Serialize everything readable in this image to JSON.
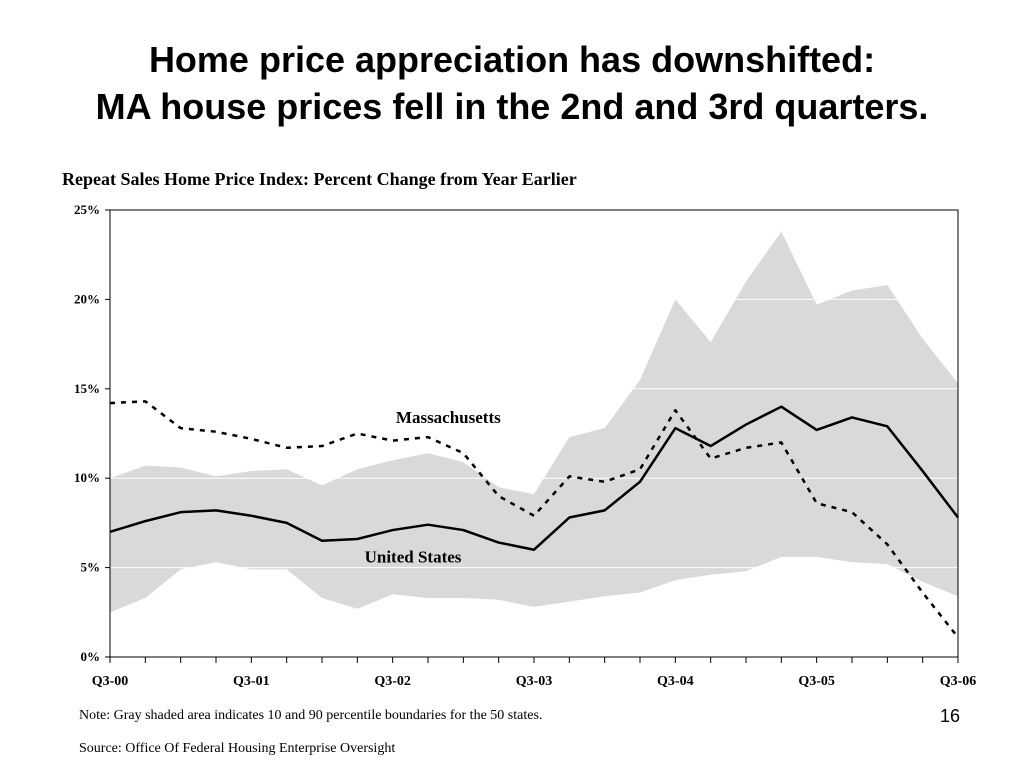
{
  "slide": {
    "title_line1": "Home price appreciation has downshifted:",
    "title_line2": "MA house prices fell in the 2nd and 3rd quarters.",
    "note": "Note: Gray shaded area indicates 10 and 90 percentile boundaries for the 50 states.",
    "source": "Source: Office Of  Federal Housing Enterprise Oversight",
    "page_number": "16"
  },
  "chart_data": {
    "type": "line",
    "title": "Repeat Sales Home Price Index: Percent Change from Year Earlier",
    "xlabel": "",
    "ylabel": "",
    "ylim": [
      0,
      25
    ],
    "y_ticks": [
      "0%",
      "5%",
      "10%",
      "15%",
      "20%",
      "25%"
    ],
    "x_tick_labels": [
      "Q3-00",
      "Q3-01",
      "Q3-02",
      "Q3-03",
      "Q3-04",
      "Q3-05",
      "Q3-06"
    ],
    "x": [
      "Q3-00",
      "Q4-00",
      "Q1-01",
      "Q2-01",
      "Q3-01",
      "Q4-01",
      "Q1-02",
      "Q2-02",
      "Q3-02",
      "Q4-02",
      "Q1-03",
      "Q2-03",
      "Q3-03",
      "Q4-03",
      "Q1-04",
      "Q2-04",
      "Q3-04",
      "Q4-04",
      "Q1-05",
      "Q2-05",
      "Q3-05",
      "Q4-05",
      "Q1-06",
      "Q2-06",
      "Q3-06"
    ],
    "grid": "horizontal",
    "band": {
      "name": "10 and 90 percentile boundaries for the 50 states",
      "color": "#d9d9d9",
      "lower": [
        2.5,
        3.3,
        4.9,
        5.3,
        4.9,
        4.9,
        3.3,
        2.7,
        3.5,
        3.3,
        3.3,
        3.2,
        2.8,
        3.1,
        3.4,
        3.6,
        4.3,
        4.6,
        4.8,
        5.6,
        5.6,
        5.3,
        5.2,
        4.2,
        3.4
      ],
      "upper": [
        10.0,
        10.7,
        10.6,
        10.1,
        10.4,
        10.5,
        9.6,
        10.5,
        11.0,
        11.4,
        10.9,
        9.5,
        9.1,
        12.3,
        12.8,
        15.5,
        20.0,
        17.6,
        21.0,
        23.8,
        19.7,
        20.5,
        20.8,
        17.8,
        15.3
      ]
    },
    "series": [
      {
        "name": "Massachusetts",
        "style": "dashed",
        "values": [
          14.2,
          14.3,
          12.8,
          12.6,
          12.2,
          11.7,
          11.8,
          12.5,
          12.1,
          12.3,
          11.4,
          9.0,
          7.9,
          10.1,
          9.8,
          10.5,
          13.8,
          11.1,
          11.7,
          12.0,
          8.6,
          8.1,
          6.3,
          3.6,
          1.1
        ]
      },
      {
        "name": "United States",
        "style": "solid",
        "values": [
          7.0,
          7.6,
          8.1,
          8.2,
          7.9,
          7.5,
          6.5,
          6.6,
          7.1,
          7.4,
          7.1,
          6.4,
          6.0,
          7.8,
          8.2,
          9.8,
          12.8,
          11.8,
          13.0,
          14.0,
          12.7,
          13.4,
          12.9,
          10.4,
          7.8
        ]
      }
    ],
    "colors": {
      "lines": "#000000",
      "band": "#d9d9d9",
      "plot_border": "#000000"
    }
  }
}
